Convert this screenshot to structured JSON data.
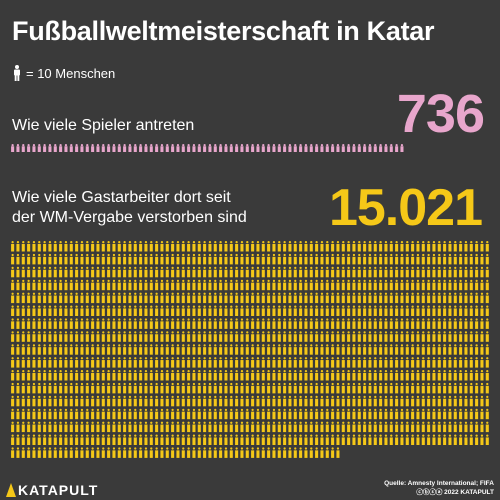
{
  "title": "Fußballweltmeisterschaft in Katar",
  "legend": {
    "icon": "person-icon",
    "text": "= 10 Menschen"
  },
  "colors": {
    "background": "#3a3a3a",
    "players": "#e8a6cc",
    "workers": "#f5c818",
    "text": "#ffffff"
  },
  "chart_data": {
    "type": "pictogram",
    "unit_value": 10,
    "unit_label": "Menschen",
    "series": [
      {
        "name": "Wie viele Spieler antreten",
        "value": 736,
        "display": "736",
        "color": "#e8a6cc"
      },
      {
        "name": "Wie viele Gastarbeiter dort seit der WM-Vergabe verstorben sind",
        "value": 15021,
        "display": "15.021",
        "color": "#f5c818"
      }
    ]
  },
  "labels": {
    "players": "Wie viele Spieler antreten",
    "workers_line1": "Wie viele Gastarbeiter dort seit",
    "workers_line2": "der WM-Vergabe verstorben sind"
  },
  "footer": {
    "logo": "KATAPULT",
    "logo_icon": "katapult-k-icon",
    "source_line1": "Quelle: Amnesty International; FIFA",
    "source_line2": "ⓒⓑⓢⓐ 2022 KATAPULT"
  }
}
